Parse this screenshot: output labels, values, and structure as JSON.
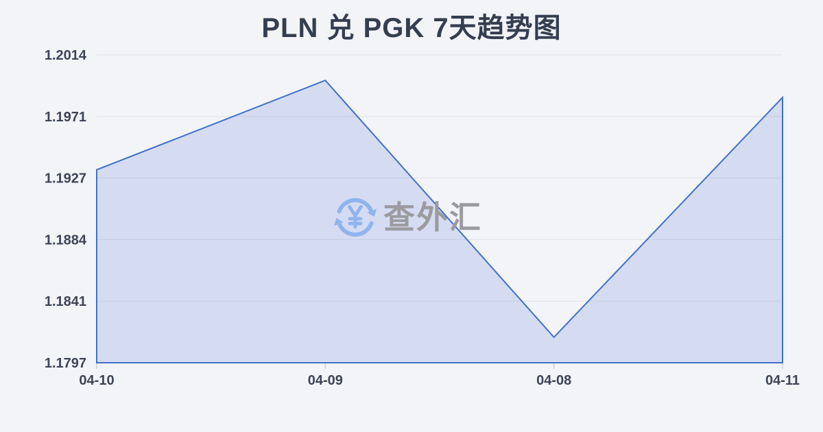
{
  "title": "PLN 兑 PGK 7天趋势图",
  "watermark": {
    "icon": "currency-exchange-icon",
    "text": "查外汇"
  },
  "colors": {
    "background": "#f3f4f8",
    "title": "#333e50",
    "axis_label": "#3d4456",
    "gridline": "rgba(100,110,140,0.14)",
    "tick": "#d5d7dd",
    "line": "#4070c8",
    "area_fill": "#d5dcf2",
    "watermark_text": "#9b9b9f",
    "watermark_icon": "#8fb4ef"
  },
  "chart_data": {
    "type": "area",
    "title": "PLN 兑 PGK 7天趋势图",
    "x": [
      "04-10",
      "04-09",
      "04-08",
      "04-11"
    ],
    "values": [
      1.1933,
      1.1996,
      1.1815,
      1.1984
    ],
    "y_ticks": [
      1.2014,
      1.1971,
      1.1927,
      1.1884,
      1.1841,
      1.1797
    ],
    "ylim": [
      1.1797,
      1.2014
    ],
    "grid": true,
    "legend": false,
    "xlabel": "",
    "ylabel": ""
  }
}
